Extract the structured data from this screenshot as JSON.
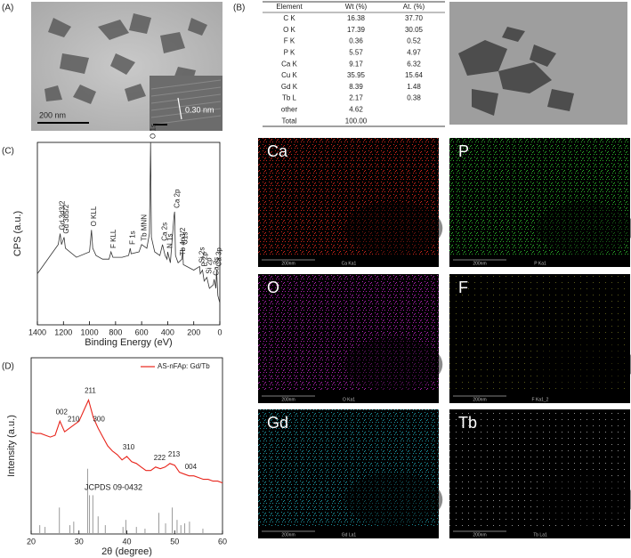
{
  "panels": {
    "a": "(A)",
    "b": "(B)",
    "c": "(C)",
    "d": "(D)"
  },
  "tem": {
    "scale_bar": "200 nm",
    "lattice": "0.30 nm"
  },
  "table": {
    "header": [
      "Element",
      "Wt (%)",
      "At. (%)"
    ],
    "rows": [
      [
        "C K",
        "16.38",
        "37.70"
      ],
      [
        "O K",
        "17.39",
        "30.05"
      ],
      [
        "F K",
        "0.36",
        "0.52"
      ],
      [
        "P K",
        "5.57",
        "4.97"
      ],
      [
        "Ca K",
        "9.17",
        "6.32"
      ],
      [
        "Cu K",
        "35.95",
        "15.64"
      ],
      [
        "Gd K",
        "8.39",
        "1.48"
      ],
      [
        "Tb L",
        "2.17",
        "0.38"
      ],
      [
        "other",
        "4.62",
        ""
      ],
      [
        "Total",
        "100.00",
        ""
      ]
    ]
  },
  "maps": [
    {
      "label": "Ca",
      "scale": "200nm",
      "caption": "Ca Ka1",
      "color": "#e82a1e"
    },
    {
      "label": "P",
      "scale": "200nm",
      "caption": "P Ka1",
      "color": "#2fc42f"
    },
    {
      "label": "O",
      "scale": "200nm",
      "caption": "O Ka1",
      "color": "#c424c8"
    },
    {
      "label": "F",
      "scale": "200nm",
      "caption": "F Ka1_2",
      "color": "#7e7e22"
    },
    {
      "label": "Gd",
      "scale": "200nm",
      "caption": "Gd La1",
      "color": "#1fa6b4"
    },
    {
      "label": "Tb",
      "scale": "200nm",
      "caption": "Tb La1",
      "color": "#cfcfcf"
    }
  ],
  "chart_data": [
    {
      "type": "line",
      "xlabel": "Binding Energy (eV)",
      "ylabel": "CPS (a.u.)",
      "color": "#333333",
      "xlim": [
        1400,
        0
      ],
      "xticks": [
        1400,
        1200,
        1000,
        800,
        600,
        400,
        200,
        0
      ],
      "ylim": [
        0,
        100
      ],
      "x": [
        1400,
        1350,
        1300,
        1260,
        1240,
        1225,
        1215,
        1195,
        1185,
        1100,
        1000,
        985,
        975,
        950,
        900,
        850,
        835,
        820,
        750,
        700,
        688,
        680,
        620,
        600,
        560,
        540,
        531,
        525,
        500,
        460,
        440,
        420,
        405,
        400,
        380,
        351,
        347,
        340,
        320,
        290,
        285,
        280,
        200,
        155,
        150,
        133,
        120,
        100,
        80,
        50,
        44,
        30,
        25,
        15,
        0
      ],
      "values": [
        28,
        33,
        38,
        42,
        44,
        50,
        44,
        48,
        42,
        37,
        40,
        52,
        42,
        38,
        36,
        36,
        40,
        37,
        37,
        38,
        42,
        39,
        40,
        44,
        42,
        50,
        100,
        48,
        40,
        38,
        44,
        38,
        36,
        40,
        34,
        60,
        62,
        38,
        34,
        36,
        42,
        33,
        30,
        32,
        28,
        30,
        24,
        26,
        20,
        22,
        25,
        20,
        30,
        16,
        12
      ],
      "annotations": [
        {
          "text": "Gd 3d3/2",
          "x": 1225
        },
        {
          "text": "Gd 3d5/2",
          "x": 1195
        },
        {
          "text": "O KLL",
          "x": 985
        },
        {
          "text": "F KLL",
          "x": 835
        },
        {
          "text": "F 1s",
          "x": 688
        },
        {
          "text": "Tb MNN",
          "x": 600
        },
        {
          "text": "O 1s",
          "x": 531
        },
        {
          "text": "Ca 2s",
          "x": 440
        },
        {
          "text": "N 1s",
          "x": 400
        },
        {
          "text": "Ca 2p",
          "x": 347
        },
        {
          "text": "C1s",
          "x": 285
        },
        {
          "text": "Tb 4p3/2",
          "x": 300
        },
        {
          "text": "Si 2s",
          "x": 155
        },
        {
          "text": "P 2p",
          "x": 133
        },
        {
          "text": "Si 2p",
          "x": 100
        },
        {
          "text": "Ca 3s",
          "x": 44
        },
        {
          "text": "Ca 3p",
          "x": 25
        }
      ]
    },
    {
      "type": "line",
      "xlabel": "2θ (degree)",
      "ylabel": "Intensity (a.u.)",
      "xlim": [
        20,
        60
      ],
      "xticks": [
        20,
        30,
        40,
        50,
        60
      ],
      "ylim": [
        0,
        100
      ],
      "legend": "top-right",
      "series": [
        {
          "name": "AS-nFAp: Gd/Tb",
          "color": "#e8251c",
          "x": [
            20,
            21,
            22,
            23,
            24,
            25,
            26,
            27,
            28,
            29,
            30,
            31,
            32,
            33,
            34,
            35,
            36,
            37,
            38,
            39,
            40,
            41,
            42,
            43,
            44,
            45,
            46,
            47,
            48,
            49,
            50,
            51,
            52,
            53,
            54,
            55,
            56,
            57,
            58,
            59,
            60
          ],
          "values": [
            58,
            57,
            57,
            56,
            55,
            56,
            64,
            58,
            60,
            62,
            64,
            70,
            76,
            66,
            60,
            55,
            50,
            47,
            45,
            42,
            44,
            41,
            40,
            38,
            36,
            36,
            38,
            37,
            38,
            40,
            39,
            35,
            34,
            33,
            33,
            32,
            31,
            31,
            30,
            30,
            29
          ]
        }
      ],
      "reference": {
        "name": "JCPDS 09-0432",
        "color": "#999999",
        "x": [
          21.8,
          22.9,
          25.9,
          28.1,
          28.9,
          31.8,
          32.2,
          32.9,
          34.0,
          35.5,
          39.2,
          39.8,
          42.0,
          43.8,
          46.7,
          48.1,
          49.5,
          50.5,
          51.3,
          52.1,
          53.1,
          55.9
        ],
        "values": [
          5,
          4,
          15,
          5,
          7,
          37,
          22,
          22,
          10,
          5,
          4,
          8,
          4,
          3,
          12,
          6,
          15,
          8,
          5,
          6,
          7,
          3
        ]
      },
      "annotations": [
        {
          "text": "002",
          "x": 26
        },
        {
          "text": "210",
          "x": 28.5
        },
        {
          "text": "211",
          "x": 32
        },
        {
          "text": "300",
          "x": 33.8
        },
        {
          "text": "310",
          "x": 40
        },
        {
          "text": "222",
          "x": 46.5
        },
        {
          "text": "213",
          "x": 49.5
        },
        {
          "text": "004",
          "x": 53
        }
      ]
    }
  ]
}
